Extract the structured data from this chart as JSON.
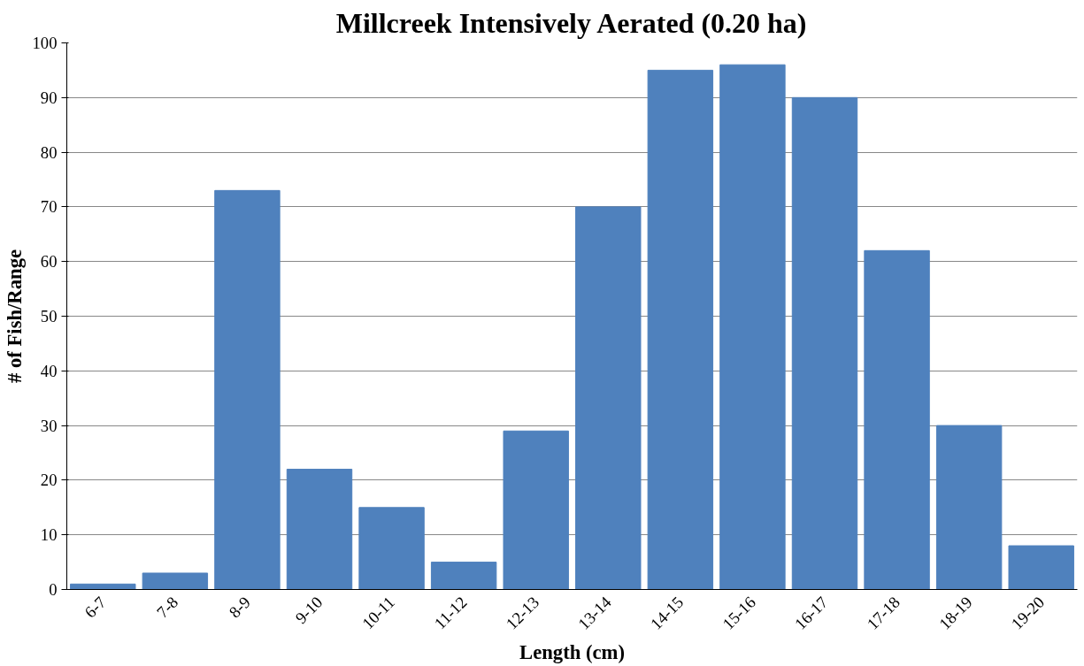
{
  "chart_data": {
    "type": "bar",
    "title": "Millcreek Intensively Aerated (0.20 ha)",
    "xlabel": "Length (cm)",
    "ylabel": "# of Fish/Range",
    "categories": [
      "6-7",
      "7-8",
      "8-9",
      "9-10",
      "10-11",
      "11-12",
      "12-13",
      "13-14",
      "14-15",
      "15-16",
      "16-17",
      "17-18",
      "18-19",
      "19-20"
    ],
    "values": [
      1,
      3,
      73,
      22,
      15,
      5,
      29,
      70,
      95,
      96,
      90,
      62,
      30,
      8
    ],
    "color": "#4f81bd",
    "ylim": [
      0,
      100
    ],
    "yticks": [
      0,
      10,
      20,
      30,
      40,
      50,
      60,
      70,
      80,
      90,
      100
    ],
    "grid": "y"
  }
}
